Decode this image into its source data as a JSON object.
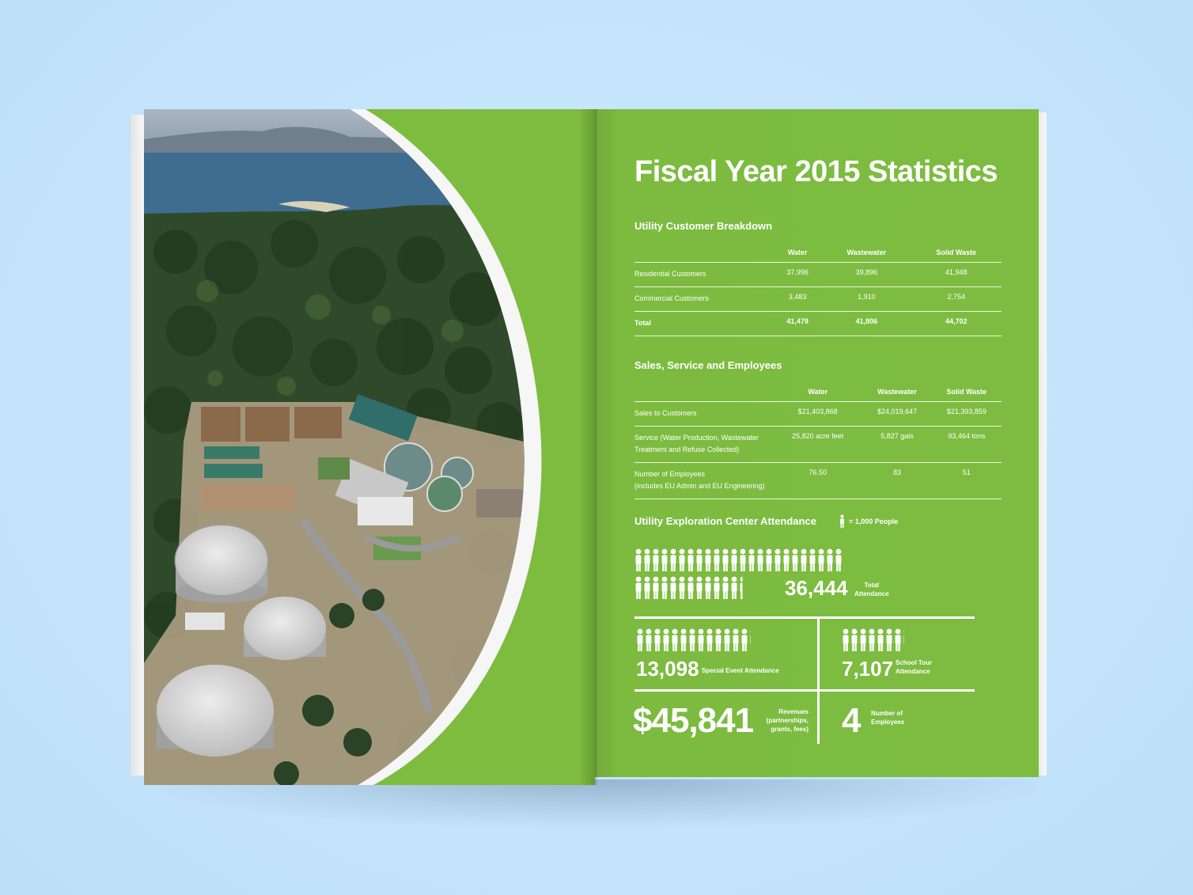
{
  "spread": {
    "title": "Fiscal Year 2015 Statistics",
    "customer_breakdown": {
      "heading": "Utility Customer Breakdown",
      "columns": [
        "Water",
        "Wastewater",
        "Solid Waste"
      ],
      "rows": [
        {
          "label": "Residential Customers",
          "values": [
            "37,996",
            "39,896",
            "41,948"
          ]
        },
        {
          "label": "Commercial Customers",
          "values": [
            "3,483",
            "1,910",
            "2,754"
          ]
        },
        {
          "label": "Total",
          "values": [
            "41,479",
            "41,806",
            "44,702"
          ]
        }
      ]
    },
    "sales_service": {
      "heading": "Sales, Service and Employees",
      "columns": [
        "Water",
        "Wastewater",
        "Solid Waste"
      ],
      "rows": [
        {
          "label_line1": "Sales to Customers",
          "label_line2": "",
          "values": [
            "$21,403,868",
            "$24,019,647",
            "$21,393,859"
          ]
        },
        {
          "label_line1": "Service (Water Production, Wastewater",
          "label_line2": "Treatment and Refuse Collected)",
          "values": [
            "25,820 acre feet",
            "5,827 gals",
            "93,464 tons"
          ]
        },
        {
          "label_line1": "Number of Employees",
          "label_line2": "(includes EU Admin and EU Engineering)",
          "values": [
            "76.50",
            "83",
            "51"
          ]
        }
      ]
    },
    "attendance": {
      "heading": "Utility Exploration Center Attendance",
      "legend": "= 1,000 People",
      "total_value": "36,444",
      "total_label_line1": "Total",
      "total_label_line2": "Attendance",
      "special_event_value": "13,098",
      "special_event_label": "Special Event Attendance",
      "school_tour_value": "7,107",
      "school_tour_label_line1": "School Tour",
      "school_tour_label_line2": "Attendance",
      "revenues_value": "$45,841",
      "revenues_label_line1": "Revenues",
      "revenues_label_line2": "(partnerships,",
      "revenues_label_line3": "grants, fees)",
      "employees_value": "4",
      "employees_label_line1": "Number of",
      "employees_label_line2": "Employees",
      "icon_counts": {
        "total": 36.444,
        "special_event": 13.098,
        "school_tour": 7.107
      }
    }
  },
  "colors": {
    "page_green": "#7dbc40",
    "background": "#c4e4fb",
    "text": "#ffffff"
  }
}
